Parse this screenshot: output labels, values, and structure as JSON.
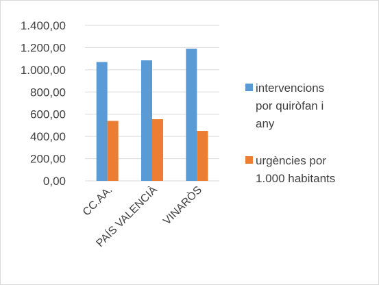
{
  "chart_data": {
    "type": "bar",
    "title": "",
    "xlabel": "",
    "ylabel": "",
    "categories": [
      "CC.AA.",
      "PAÍS VALENCIÀ",
      "VINARÒS"
    ],
    "series": [
      {
        "name_lines": [
          "intervencions",
          "por quiròfan i",
          "any"
        ],
        "color": "#5b9bd5",
        "values": [
          1070,
          1085,
          1190
        ]
      },
      {
        "name_lines": [
          "urgències por",
          "1.000 habitants"
        ],
        "color": "#ed7d31",
        "values": [
          540,
          555,
          450
        ]
      }
    ],
    "ylim": [
      0,
      1400
    ],
    "ytick_values": [
      0,
      200,
      400,
      600,
      800,
      1000,
      1200,
      1400
    ],
    "ytick_labels": [
      "0,00",
      "200,00",
      "400,00",
      "600,00",
      "800,00",
      "1.000,00",
      "1.200,00",
      "1.400,00"
    ],
    "grid": true,
    "legend_position": "right",
    "colors": {
      "gridline": "#d9d9d9",
      "text": "#404040"
    }
  }
}
